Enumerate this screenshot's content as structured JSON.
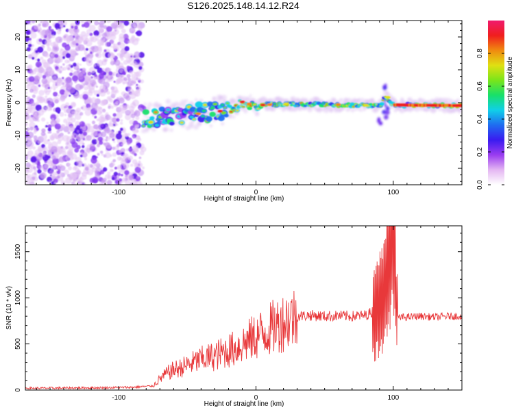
{
  "chart_data": [
    {
      "type": "heatmap",
      "title": "S126.2025.148.14.12.R24",
      "xlabel": "Height of straight line (km)",
      "ylabel": "Frequency (Hz)",
      "xlim": [
        -168,
        150
      ],
      "ylim": [
        -25,
        25
      ],
      "x_ticks": [
        -100,
        0,
        100
      ],
      "y_ticks": [
        20,
        10,
        0,
        -10,
        -20
      ],
      "grid": false,
      "colorbar": {
        "label": "Normalized spectral amplitude",
        "range": [
          0,
          1
        ],
        "ticks": [
          "0.0",
          "0.2",
          "0.4",
          "0.6",
          "0.8"
        ],
        "colors": [
          "#ffffff",
          "#e4b6f2",
          "#9a3cf0",
          "#3a1bf0",
          "#1f6cf0",
          "#10d0e8",
          "#18e06a",
          "#7ae51a",
          "#e0e012",
          "#f08a10",
          "#f01e1e",
          "#f01a6e"
        ]
      },
      "ridge": {
        "x": [
          -82,
          -75,
          -65,
          -55,
          -45,
          -35,
          -25,
          -15,
          -10,
          -5,
          0,
          5,
          10,
          20,
          40,
          60,
          80,
          90,
          95,
          100,
          120,
          150
        ],
        "y": [
          -4.8,
          -4.5,
          -4.2,
          -3.6,
          -3.2,
          -3.0,
          -2.6,
          -1.5,
          0.2,
          -0.5,
          -2.0,
          -0.3,
          -0.6,
          -0.4,
          -0.5,
          -0.7,
          -0.8,
          -1.0,
          1.8,
          -0.7,
          -0.8,
          -0.9
        ]
      }
    },
    {
      "type": "line",
      "xlabel": "Height of straight line (km)",
      "ylabel": "SNR (10 * v/v)",
      "xlim": [
        -168,
        150
      ],
      "ylim": [
        0,
        1780
      ],
      "x_ticks": [
        -100,
        0,
        100
      ],
      "y_ticks": [
        0,
        500,
        1000,
        1500
      ],
      "grid": false,
      "series": [
        {
          "color": "#e8383a",
          "x": [
            -168,
            -140,
            -110,
            -90,
            -75,
            -70,
            -65,
            -60,
            -55,
            -50,
            -45,
            -40,
            -35,
            -30,
            -25,
            -20,
            -15,
            -10,
            -5,
            0,
            5,
            10,
            15,
            20,
            25,
            30,
            40,
            50,
            60,
            70,
            80,
            85,
            88,
            90,
            92,
            94,
            96,
            98,
            100,
            101,
            102,
            104,
            106,
            110,
            120,
            130,
            140,
            150
          ],
          "y": [
            20,
            22,
            25,
            30,
            45,
            120,
            180,
            220,
            240,
            270,
            300,
            330,
            350,
            370,
            400,
            430,
            450,
            500,
            540,
            580,
            620,
            660,
            700,
            740,
            780,
            800,
            810,
            800,
            805,
            800,
            810,
            850,
            900,
            950,
            1000,
            1100,
            1250,
            1450,
            1780,
            1600,
            900,
            780,
            790,
            790,
            800,
            790,
            800,
            800
          ]
        }
      ]
    }
  ]
}
